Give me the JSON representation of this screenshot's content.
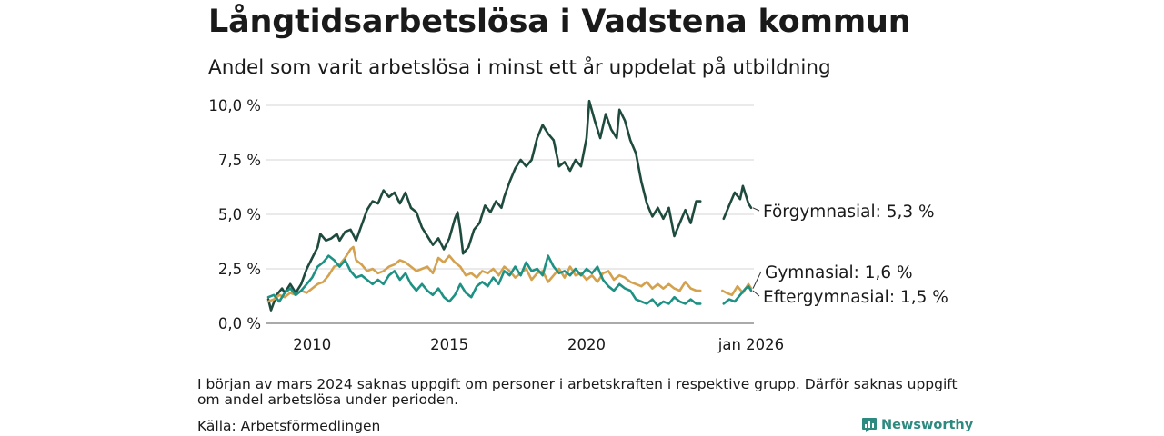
{
  "title": "Långtidsarbetslösa i Vadstena kommun",
  "subtitle": "Andel som varit arbetslösa i minst ett år uppdelat på utbildning",
  "note": "I början av mars 2024 saknas uppgift om personer i arbetskraften i respektive grupp. Därför saknas uppgift om andel arbetslösa under perioden.",
  "source": "Källa: Arbetsförmedlingen",
  "brand": "Newsworthy",
  "colors": {
    "forgymnasial": "#1f4a3e",
    "gymnasial": "#d4a14e",
    "eftergymnasial": "#1e9184",
    "grid": "#dddddd",
    "brand": "#2c8a80"
  },
  "chart_data": {
    "type": "line",
    "xlim": [
      2008.3,
      2026.1
    ],
    "ylim": [
      0,
      10.5
    ],
    "y_ticks": [
      {
        "value": 0,
        "label": "0,0 %"
      },
      {
        "value": 2.5,
        "label": "2,5 %"
      },
      {
        "value": 5,
        "label": "5,0 %"
      },
      {
        "value": 7.5,
        "label": "7,5 %"
      },
      {
        "value": 10,
        "label": "10,0 %"
      }
    ],
    "x_ticks": [
      {
        "value": 2010,
        "label": "2010"
      },
      {
        "value": 2015,
        "label": "2015"
      },
      {
        "value": 2020,
        "label": "2020"
      },
      {
        "value": 2026,
        "label": "jan 2026"
      }
    ],
    "gap": [
      2024.2,
      2024.95
    ],
    "series": [
      {
        "key": "forgymnasial",
        "name": "Förgymnasial",
        "end_label": "Förgymnasial: 5,3 %",
        "points": [
          [
            2008.4,
            1.1
          ],
          [
            2008.5,
            0.6
          ],
          [
            2008.7,
            1.3
          ],
          [
            2008.9,
            1.6
          ],
          [
            2009.0,
            1.4
          ],
          [
            2009.2,
            1.8
          ],
          [
            2009.4,
            1.4
          ],
          [
            2009.6,
            1.8
          ],
          [
            2009.8,
            2.5
          ],
          [
            2010.0,
            3.0
          ],
          [
            2010.2,
            3.5
          ],
          [
            2010.3,
            4.1
          ],
          [
            2010.5,
            3.8
          ],
          [
            2010.7,
            3.9
          ],
          [
            2010.9,
            4.1
          ],
          [
            2011.0,
            3.8
          ],
          [
            2011.2,
            4.2
          ],
          [
            2011.4,
            4.3
          ],
          [
            2011.6,
            3.8
          ],
          [
            2011.8,
            4.5
          ],
          [
            2012.0,
            5.2
          ],
          [
            2012.2,
            5.6
          ],
          [
            2012.4,
            5.5
          ],
          [
            2012.6,
            6.1
          ],
          [
            2012.8,
            5.8
          ],
          [
            2013.0,
            6.0
          ],
          [
            2013.2,
            5.5
          ],
          [
            2013.4,
            6.0
          ],
          [
            2013.6,
            5.3
          ],
          [
            2013.8,
            5.1
          ],
          [
            2014.0,
            4.4
          ],
          [
            2014.2,
            4.0
          ],
          [
            2014.4,
            3.6
          ],
          [
            2014.6,
            3.9
          ],
          [
            2014.8,
            3.4
          ],
          [
            2015.0,
            3.9
          ],
          [
            2015.2,
            4.8
          ],
          [
            2015.3,
            5.1
          ],
          [
            2015.4,
            4.3
          ],
          [
            2015.5,
            3.2
          ],
          [
            2015.7,
            3.5
          ],
          [
            2015.9,
            4.3
          ],
          [
            2016.1,
            4.6
          ],
          [
            2016.3,
            5.4
          ],
          [
            2016.5,
            5.1
          ],
          [
            2016.7,
            5.6
          ],
          [
            2016.9,
            5.3
          ],
          [
            2017.0,
            5.8
          ],
          [
            2017.2,
            6.5
          ],
          [
            2017.4,
            7.1
          ],
          [
            2017.6,
            7.5
          ],
          [
            2017.8,
            7.2
          ],
          [
            2018.0,
            7.5
          ],
          [
            2018.2,
            8.5
          ],
          [
            2018.4,
            9.1
          ],
          [
            2018.6,
            8.7
          ],
          [
            2018.8,
            8.4
          ],
          [
            2019.0,
            7.2
          ],
          [
            2019.2,
            7.4
          ],
          [
            2019.4,
            7.0
          ],
          [
            2019.6,
            7.5
          ],
          [
            2019.8,
            7.2
          ],
          [
            2020.0,
            8.5
          ],
          [
            2020.1,
            10.2
          ],
          [
            2020.3,
            9.3
          ],
          [
            2020.5,
            8.5
          ],
          [
            2020.7,
            9.6
          ],
          [
            2020.9,
            8.9
          ],
          [
            2021.1,
            8.5
          ],
          [
            2021.2,
            9.8
          ],
          [
            2021.4,
            9.3
          ],
          [
            2021.6,
            8.4
          ],
          [
            2021.8,
            7.8
          ],
          [
            2022.0,
            6.5
          ],
          [
            2022.2,
            5.5
          ],
          [
            2022.4,
            4.9
          ],
          [
            2022.6,
            5.3
          ],
          [
            2022.8,
            4.8
          ],
          [
            2023.0,
            5.3
          ],
          [
            2023.2,
            4.0
          ],
          [
            2023.4,
            4.6
          ],
          [
            2023.6,
            5.2
          ],
          [
            2023.8,
            4.6
          ],
          [
            2024.0,
            5.6
          ],
          [
            2024.15,
            5.6
          ],
          null,
          [
            2025.0,
            4.8
          ],
          [
            2025.2,
            5.4
          ],
          [
            2025.4,
            6.0
          ],
          [
            2025.6,
            5.7
          ],
          [
            2025.7,
            6.3
          ],
          [
            2025.9,
            5.5
          ],
          [
            2026.0,
            5.3
          ]
        ]
      },
      {
        "key": "gymnasial",
        "name": "Gymnasial",
        "end_label": "Gymnasial: 1,6 %",
        "points": [
          [
            2008.4,
            1.0
          ],
          [
            2008.6,
            1.1
          ],
          [
            2008.8,
            1.3
          ],
          [
            2009.0,
            1.2
          ],
          [
            2009.2,
            1.4
          ],
          [
            2009.4,
            1.3
          ],
          [
            2009.6,
            1.5
          ],
          [
            2009.8,
            1.4
          ],
          [
            2010.0,
            1.6
          ],
          [
            2010.2,
            1.8
          ],
          [
            2010.4,
            1.9
          ],
          [
            2010.6,
            2.2
          ],
          [
            2010.8,
            2.6
          ],
          [
            2011.0,
            2.7
          ],
          [
            2011.2,
            3.0
          ],
          [
            2011.4,
            3.4
          ],
          [
            2011.5,
            3.5
          ],
          [
            2011.6,
            2.9
          ],
          [
            2011.8,
            2.7
          ],
          [
            2012.0,
            2.4
          ],
          [
            2012.2,
            2.5
          ],
          [
            2012.4,
            2.3
          ],
          [
            2012.6,
            2.4
          ],
          [
            2012.8,
            2.6
          ],
          [
            2013.0,
            2.7
          ],
          [
            2013.2,
            2.9
          ],
          [
            2013.4,
            2.8
          ],
          [
            2013.6,
            2.6
          ],
          [
            2013.8,
            2.4
          ],
          [
            2014.0,
            2.5
          ],
          [
            2014.2,
            2.6
          ],
          [
            2014.4,
            2.3
          ],
          [
            2014.6,
            3.0
          ],
          [
            2014.8,
            2.8
          ],
          [
            2015.0,
            3.1
          ],
          [
            2015.2,
            2.8
          ],
          [
            2015.4,
            2.6
          ],
          [
            2015.6,
            2.2
          ],
          [
            2015.8,
            2.3
          ],
          [
            2016.0,
            2.1
          ],
          [
            2016.2,
            2.4
          ],
          [
            2016.4,
            2.3
          ],
          [
            2016.6,
            2.5
          ],
          [
            2016.8,
            2.2
          ],
          [
            2017.0,
            2.6
          ],
          [
            2017.2,
            2.4
          ],
          [
            2017.4,
            2.1
          ],
          [
            2017.6,
            2.3
          ],
          [
            2017.8,
            2.5
          ],
          [
            2018.0,
            2.0
          ],
          [
            2018.2,
            2.3
          ],
          [
            2018.4,
            2.4
          ],
          [
            2018.6,
            1.9
          ],
          [
            2018.8,
            2.2
          ],
          [
            2019.0,
            2.5
          ],
          [
            2019.2,
            2.1
          ],
          [
            2019.4,
            2.6
          ],
          [
            2019.6,
            2.2
          ],
          [
            2019.8,
            2.3
          ],
          [
            2020.0,
            2.0
          ],
          [
            2020.2,
            2.2
          ],
          [
            2020.4,
            1.9
          ],
          [
            2020.6,
            2.3
          ],
          [
            2020.8,
            2.4
          ],
          [
            2021.0,
            2.0
          ],
          [
            2021.2,
            2.2
          ],
          [
            2021.4,
            2.1
          ],
          [
            2021.6,
            1.9
          ],
          [
            2021.8,
            1.8
          ],
          [
            2022.0,
            1.7
          ],
          [
            2022.2,
            1.9
          ],
          [
            2022.4,
            1.6
          ],
          [
            2022.6,
            1.8
          ],
          [
            2022.8,
            1.6
          ],
          [
            2023.0,
            1.8
          ],
          [
            2023.2,
            1.6
          ],
          [
            2023.4,
            1.5
          ],
          [
            2023.6,
            1.9
          ],
          [
            2023.8,
            1.6
          ],
          [
            2024.0,
            1.5
          ],
          [
            2024.15,
            1.5
          ],
          null,
          [
            2024.95,
            1.5
          ],
          [
            2025.1,
            1.4
          ],
          [
            2025.3,
            1.3
          ],
          [
            2025.5,
            1.7
          ],
          [
            2025.7,
            1.4
          ],
          [
            2025.9,
            1.8
          ],
          [
            2026.0,
            1.6
          ]
        ]
      },
      {
        "key": "eftergymnasial",
        "name": "Eftergymnasial",
        "end_label": "Eftergymnasial: 1,5 %",
        "points": [
          [
            2008.4,
            1.2
          ],
          [
            2008.6,
            1.3
          ],
          [
            2008.8,
            1.0
          ],
          [
            2009.0,
            1.4
          ],
          [
            2009.2,
            1.6
          ],
          [
            2009.4,
            1.3
          ],
          [
            2009.6,
            1.5
          ],
          [
            2009.8,
            1.8
          ],
          [
            2010.0,
            2.1
          ],
          [
            2010.2,
            2.6
          ],
          [
            2010.4,
            2.8
          ],
          [
            2010.6,
            3.1
          ],
          [
            2010.8,
            2.9
          ],
          [
            2011.0,
            2.6
          ],
          [
            2011.2,
            2.9
          ],
          [
            2011.4,
            2.4
          ],
          [
            2011.6,
            2.1
          ],
          [
            2011.8,
            2.2
          ],
          [
            2012.0,
            2.0
          ],
          [
            2012.2,
            1.8
          ],
          [
            2012.4,
            2.0
          ],
          [
            2012.6,
            1.8
          ],
          [
            2012.8,
            2.2
          ],
          [
            2013.0,
            2.4
          ],
          [
            2013.2,
            2.0
          ],
          [
            2013.4,
            2.3
          ],
          [
            2013.6,
            1.8
          ],
          [
            2013.8,
            1.5
          ],
          [
            2014.0,
            1.8
          ],
          [
            2014.2,
            1.5
          ],
          [
            2014.4,
            1.3
          ],
          [
            2014.6,
            1.6
          ],
          [
            2014.8,
            1.2
          ],
          [
            2015.0,
            1.0
          ],
          [
            2015.2,
            1.3
          ],
          [
            2015.4,
            1.8
          ],
          [
            2015.6,
            1.4
          ],
          [
            2015.8,
            1.2
          ],
          [
            2016.0,
            1.7
          ],
          [
            2016.2,
            1.9
          ],
          [
            2016.4,
            1.7
          ],
          [
            2016.6,
            2.1
          ],
          [
            2016.8,
            1.8
          ],
          [
            2017.0,
            2.4
          ],
          [
            2017.2,
            2.2
          ],
          [
            2017.4,
            2.6
          ],
          [
            2017.6,
            2.2
          ],
          [
            2017.8,
            2.8
          ],
          [
            2018.0,
            2.4
          ],
          [
            2018.2,
            2.5
          ],
          [
            2018.4,
            2.2
          ],
          [
            2018.6,
            3.1
          ],
          [
            2018.8,
            2.6
          ],
          [
            2019.0,
            2.3
          ],
          [
            2019.2,
            2.4
          ],
          [
            2019.4,
            2.2
          ],
          [
            2019.6,
            2.5
          ],
          [
            2019.8,
            2.2
          ],
          [
            2020.0,
            2.5
          ],
          [
            2020.2,
            2.3
          ],
          [
            2020.4,
            2.6
          ],
          [
            2020.6,
            2.0
          ],
          [
            2020.8,
            1.7
          ],
          [
            2021.0,
            1.5
          ],
          [
            2021.2,
            1.8
          ],
          [
            2021.4,
            1.6
          ],
          [
            2021.6,
            1.5
          ],
          [
            2021.8,
            1.1
          ],
          [
            2022.0,
            1.0
          ],
          [
            2022.2,
            0.9
          ],
          [
            2022.4,
            1.1
          ],
          [
            2022.6,
            0.8
          ],
          [
            2022.8,
            1.0
          ],
          [
            2023.0,
            0.9
          ],
          [
            2023.2,
            1.2
          ],
          [
            2023.4,
            1.0
          ],
          [
            2023.6,
            0.9
          ],
          [
            2023.8,
            1.1
          ],
          [
            2024.0,
            0.9
          ],
          [
            2024.15,
            0.9
          ],
          null,
          [
            2025.0,
            0.9
          ],
          [
            2025.2,
            1.1
          ],
          [
            2025.4,
            1.0
          ],
          [
            2025.6,
            1.3
          ],
          [
            2025.8,
            1.6
          ],
          [
            2025.9,
            1.7
          ],
          [
            2026.0,
            1.5
          ]
        ]
      }
    ]
  }
}
